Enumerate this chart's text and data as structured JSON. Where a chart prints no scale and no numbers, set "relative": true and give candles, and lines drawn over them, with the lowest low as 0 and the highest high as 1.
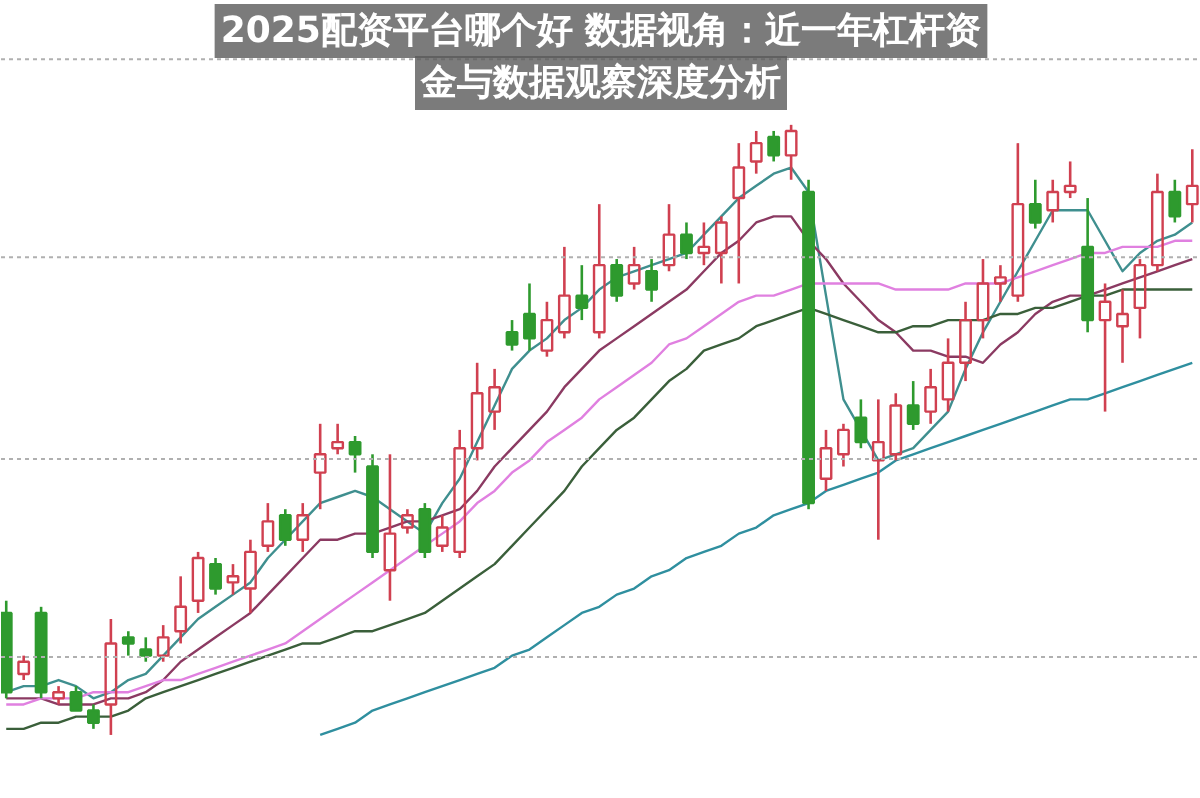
{
  "chart_data": {
    "type": "candlestick",
    "title": "2025配资平台哪个好 数据视角：近一年杠杆资金与数据观察深度分析",
    "relative": true,
    "grid": true,
    "categories": [
      null,
      null,
      null,
      null,
      null,
      null,
      null,
      null,
      null,
      null,
      null,
      null,
      null,
      null,
      null,
      null,
      null,
      null,
      null,
      null,
      null,
      null,
      null,
      null,
      null,
      null,
      null,
      null,
      null,
      null,
      null,
      null,
      null,
      null,
      null,
      null,
      null,
      null,
      null,
      null,
      null,
      null,
      null,
      null,
      null,
      null,
      null,
      null,
      null,
      null,
      null,
      null,
      null,
      null,
      null,
      null,
      null,
      null,
      null,
      null,
      null,
      null,
      null,
      null,
      null,
      null,
      null,
      null,
      null
    ],
    "ohlc": [
      [
        0.2,
        0.22,
        0.06,
        0.07
      ],
      [
        0.1,
        0.13,
        0.09,
        0.12
      ],
      [
        0.2,
        0.21,
        0.06,
        0.07
      ],
      [
        0.06,
        0.08,
        0.05,
        0.07
      ],
      [
        0.07,
        0.08,
        0.04,
        0.04
      ],
      [
        0.04,
        0.05,
        0.01,
        0.02
      ],
      [
        0.05,
        0.19,
        0.0,
        0.15
      ],
      [
        0.16,
        0.17,
        0.13,
        0.15
      ],
      [
        0.14,
        0.16,
        0.12,
        0.13
      ],
      [
        0.13,
        0.18,
        0.12,
        0.16
      ],
      [
        0.17,
        0.26,
        0.15,
        0.21
      ],
      [
        0.22,
        0.3,
        0.2,
        0.29
      ],
      [
        0.28,
        0.29,
        0.23,
        0.24
      ],
      [
        0.25,
        0.28,
        0.23,
        0.26
      ],
      [
        0.24,
        0.32,
        0.2,
        0.3
      ],
      [
        0.31,
        0.38,
        0.3,
        0.35
      ],
      [
        0.36,
        0.37,
        0.31,
        0.32
      ],
      [
        0.32,
        0.38,
        0.3,
        0.36
      ],
      [
        0.43,
        0.51,
        0.37,
        0.46
      ],
      [
        0.47,
        0.51,
        0.46,
        0.48
      ],
      [
        0.48,
        0.49,
        0.43,
        0.46
      ],
      [
        0.44,
        0.46,
        0.29,
        0.3
      ],
      [
        0.27,
        0.46,
        0.22,
        0.33
      ],
      [
        0.34,
        0.37,
        0.33,
        0.36
      ],
      [
        0.37,
        0.38,
        0.29,
        0.3
      ],
      [
        0.31,
        0.36,
        0.3,
        0.34
      ],
      [
        0.3,
        0.5,
        0.29,
        0.47
      ],
      [
        0.47,
        0.61,
        0.45,
        0.56
      ],
      [
        0.53,
        0.6,
        0.5,
        0.57
      ],
      [
        0.66,
        0.68,
        0.63,
        0.64
      ],
      [
        0.69,
        0.74,
        0.63,
        0.65
      ],
      [
        0.63,
        0.71,
        0.62,
        0.68
      ],
      [
        0.66,
        0.8,
        0.65,
        0.72
      ],
      [
        0.72,
        0.77,
        0.68,
        0.7
      ],
      [
        0.66,
        0.87,
        0.65,
        0.77
      ],
      [
        0.77,
        0.78,
        0.71,
        0.72
      ],
      [
        0.74,
        0.8,
        0.73,
        0.77
      ],
      [
        0.76,
        0.78,
        0.71,
        0.73
      ],
      [
        0.77,
        0.87,
        0.76,
        0.82
      ],
      [
        0.82,
        0.84,
        0.78,
        0.79
      ],
      [
        0.79,
        0.84,
        0.77,
        0.8
      ],
      [
        0.79,
        0.85,
        0.74,
        0.84
      ],
      [
        0.88,
        0.97,
        0.74,
        0.93
      ],
      [
        0.94,
        0.99,
        0.92,
        0.97
      ],
      [
        0.98,
        0.99,
        0.94,
        0.95
      ],
      [
        0.95,
        1.0,
        0.91,
        0.99
      ],
      [
        0.89,
        0.91,
        0.37,
        0.38
      ],
      [
        0.42,
        0.5,
        0.4,
        0.47
      ],
      [
        0.46,
        0.51,
        0.44,
        0.5
      ],
      [
        0.52,
        0.55,
        0.47,
        0.48
      ],
      [
        0.45,
        0.55,
        0.32,
        0.48
      ],
      [
        0.46,
        0.56,
        0.45,
        0.54
      ],
      [
        0.54,
        0.58,
        0.5,
        0.51
      ],
      [
        0.53,
        0.6,
        0.51,
        0.57
      ],
      [
        0.55,
        0.65,
        0.53,
        0.61
      ],
      [
        0.61,
        0.71,
        0.58,
        0.68
      ],
      [
        0.68,
        0.78,
        0.65,
        0.74
      ],
      [
        0.74,
        0.77,
        0.71,
        0.75
      ],
      [
        0.72,
        0.97,
        0.71,
        0.87
      ],
      [
        0.87,
        0.91,
        0.83,
        0.84
      ],
      [
        0.86,
        0.91,
        0.84,
        0.89
      ],
      [
        0.89,
        0.94,
        0.88,
        0.9
      ],
      [
        0.8,
        0.88,
        0.66,
        0.68
      ],
      [
        0.68,
        0.74,
        0.53,
        0.71
      ],
      [
        0.67,
        0.73,
        0.61,
        0.69
      ],
      [
        0.7,
        0.78,
        0.65,
        0.77
      ],
      [
        0.77,
        0.92,
        0.76,
        0.89
      ],
      [
        0.89,
        0.91,
        0.84,
        0.85
      ],
      [
        0.87,
        0.96,
        0.84,
        0.9
      ]
    ],
    "colors": [
      "#2e9a2e",
      "#d04050",
      "#2e9a2e",
      "#d04050",
      "#2e9a2e",
      "#2e9a2e",
      "#d04050",
      "#2e9a2e",
      "#2e9a2e",
      "#d04050",
      "#d04050",
      "#d04050",
      "#2e9a2e",
      "#d04050",
      "#d04050",
      "#d04050",
      "#2e9a2e",
      "#d04050",
      "#d04050",
      "#d04050",
      "#2e9a2e",
      "#2e9a2e",
      "#d04050",
      "#d04050",
      "#2e9a2e",
      "#d04050",
      "#d04050",
      "#d04050",
      "#d04050",
      "#2e9a2e",
      "#2e9a2e",
      "#d04050",
      "#d04050",
      "#2e9a2e",
      "#d04050",
      "#2e9a2e",
      "#d04050",
      "#2e9a2e",
      "#d04050",
      "#2e9a2e",
      "#d04050",
      "#d04050",
      "#d04050",
      "#d04050",
      "#2e9a2e",
      "#d04050",
      "#2e9a2e",
      "#d04050",
      "#d04050",
      "#2e9a2e",
      "#d04050",
      "#d04050",
      "#2e9a2e",
      "#d04050",
      "#d04050",
      "#d04050",
      "#d04050",
      "#d04050",
      "#d04050",
      "#2e9a2e",
      "#d04050",
      "#d04050",
      "#2e9a2e",
      "#d04050",
      "#d04050",
      "#d04050",
      "#d04050",
      "#2e9a2e",
      "#d04050"
    ],
    "series": [
      {
        "type": "line",
        "color": "#3f8f8f",
        "values": [
          0.07,
          0.08,
          0.08,
          0.09,
          0.08,
          0.06,
          0.07,
          0.09,
          0.1,
          0.13,
          0.16,
          0.19,
          0.21,
          0.23,
          0.25,
          0.29,
          0.32,
          0.35,
          0.38,
          0.39,
          0.4,
          0.39,
          0.37,
          0.35,
          0.33,
          0.38,
          0.42,
          0.48,
          0.54,
          0.6,
          0.63,
          0.65,
          0.68,
          0.7,
          0.73,
          0.75,
          0.76,
          0.77,
          0.78,
          0.79,
          0.82,
          0.85,
          0.88,
          0.9,
          0.92,
          0.93,
          0.89,
          0.72,
          0.55,
          0.5,
          0.45,
          0.46,
          0.47,
          0.5,
          0.53,
          0.6,
          0.66,
          0.71,
          0.76,
          0.81,
          0.86,
          0.86,
          0.86,
          0.81,
          0.76,
          0.79,
          0.81,
          0.82,
          0.84
        ]
      },
      {
        "type": "line",
        "color": "#8b3a62",
        "values": [
          0.06,
          0.06,
          0.06,
          0.05,
          0.05,
          0.05,
          0.06,
          0.06,
          0.07,
          0.09,
          0.12,
          0.14,
          0.16,
          0.18,
          0.2,
          0.23,
          0.26,
          0.29,
          0.32,
          0.32,
          0.33,
          0.33,
          0.34,
          0.35,
          0.35,
          0.36,
          0.37,
          0.4,
          0.44,
          0.47,
          0.5,
          0.53,
          0.57,
          0.6,
          0.63,
          0.65,
          0.67,
          0.69,
          0.71,
          0.73,
          0.76,
          0.79,
          0.81,
          0.84,
          0.85,
          0.85,
          0.81,
          0.78,
          0.74,
          0.71,
          0.68,
          0.66,
          0.63,
          0.63,
          0.62,
          0.62,
          0.61,
          0.64,
          0.66,
          0.69,
          0.71,
          0.72,
          0.72,
          0.73,
          0.74,
          0.75,
          0.76,
          0.77,
          0.78
        ]
      },
      {
        "type": "line",
        "color": "#e080e0",
        "values": [
          0.05,
          0.05,
          0.06,
          0.06,
          0.06,
          0.07,
          0.07,
          0.07,
          0.08,
          0.09,
          0.09,
          0.1,
          0.11,
          0.12,
          0.13,
          0.14,
          0.15,
          0.17,
          0.19,
          0.21,
          0.23,
          0.25,
          0.27,
          0.29,
          0.31,
          0.33,
          0.35,
          0.38,
          0.4,
          0.43,
          0.45,
          0.48,
          0.5,
          0.52,
          0.55,
          0.57,
          0.59,
          0.61,
          0.64,
          0.65,
          0.67,
          0.69,
          0.71,
          0.72,
          0.72,
          0.73,
          0.74,
          0.74,
          0.74,
          0.74,
          0.74,
          0.73,
          0.73,
          0.73,
          0.73,
          0.74,
          0.74,
          0.74,
          0.75,
          0.76,
          0.77,
          0.78,
          0.79,
          0.79,
          0.8,
          0.8,
          0.8,
          0.81,
          0.81
        ]
      },
      {
        "type": "line",
        "color": "#3a5f3a",
        "values": [
          0.01,
          0.01,
          0.02,
          0.02,
          0.03,
          0.03,
          0.03,
          0.04,
          0.06,
          0.07,
          0.08,
          0.09,
          0.1,
          0.11,
          0.12,
          0.13,
          0.14,
          0.15,
          0.15,
          0.16,
          0.17,
          0.17,
          0.18,
          0.19,
          0.2,
          0.22,
          0.24,
          0.26,
          0.28,
          0.31,
          0.34,
          0.37,
          0.4,
          0.44,
          0.47,
          0.5,
          0.52,
          0.55,
          0.58,
          0.6,
          0.63,
          0.64,
          0.65,
          0.67,
          0.68,
          0.69,
          0.7,
          0.69,
          0.68,
          0.67,
          0.66,
          0.66,
          0.67,
          0.67,
          0.68,
          0.68,
          0.68,
          0.69,
          0.69,
          0.7,
          0.7,
          0.71,
          0.72,
          0.72,
          0.73,
          0.73,
          0.73,
          0.73,
          0.73
        ]
      },
      {
        "type": "line",
        "color": "#2f8f9f",
        "values": [
          null,
          null,
          null,
          null,
          null,
          null,
          null,
          null,
          null,
          null,
          null,
          null,
          null,
          null,
          null,
          null,
          null,
          null,
          0.0,
          0.01,
          0.02,
          0.04,
          0.05,
          0.06,
          0.07,
          0.08,
          0.09,
          0.1,
          0.11,
          0.13,
          0.14,
          0.16,
          0.18,
          0.2,
          0.21,
          0.23,
          0.24,
          0.26,
          0.27,
          0.29,
          0.3,
          0.31,
          0.33,
          0.34,
          0.36,
          0.37,
          0.38,
          0.4,
          0.41,
          0.42,
          0.43,
          0.45,
          0.46,
          0.47,
          0.48,
          0.49,
          0.5,
          0.51,
          0.52,
          0.53,
          0.54,
          0.55,
          0.55,
          0.56,
          0.57,
          0.58,
          0.59,
          0.6,
          0.61
        ]
      }
    ]
  }
}
